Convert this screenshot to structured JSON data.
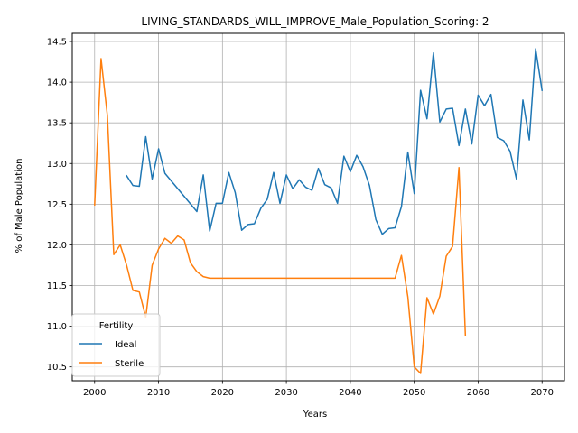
{
  "chart_data": {
    "type": "line",
    "title": "LIVING_STANDARDS_WILL_IMPROVE_Male_Population_Scoring: 2",
    "xlabel": "Years",
    "ylabel": "% of Male Population",
    "xlim": [
      1996.5,
      2073.5
    ],
    "ylim": [
      10.33,
      14.6
    ],
    "xticks": [
      2000,
      2010,
      2020,
      2030,
      2040,
      2050,
      2060,
      2070
    ],
    "yticks": [
      10.5,
      11.0,
      11.5,
      12.0,
      12.5,
      13.0,
      13.5,
      14.0,
      14.5
    ],
    "ytick_labels": [
      "10.5",
      "11.0",
      "11.5",
      "12.0",
      "12.5",
      "13.0",
      "13.5",
      "14.0",
      "14.5"
    ],
    "grid": true,
    "legend": {
      "title": "Fertility",
      "placement": "lower-left"
    },
    "series": [
      {
        "name": "Ideal",
        "color": "#1f77b4",
        "x": [
          2005,
          2006,
          2007,
          2008,
          2009,
          2010,
          2011,
          2016,
          2017,
          2018,
          2019,
          2020,
          2021,
          2022,
          2023,
          2024,
          2025,
          2026,
          2027,
          2028,
          2029,
          2030,
          2031,
          2032,
          2033,
          2034,
          2035,
          2036,
          2037,
          2038,
          2039,
          2040,
          2041,
          2042,
          2043,
          2044,
          2045,
          2046,
          2047,
          2048,
          2049,
          2050,
          2051,
          2052,
          2053,
          2054,
          2055,
          2056,
          2057,
          2058,
          2059,
          2060,
          2061,
          2062,
          2063,
          2064,
          2065,
          2066,
          2067,
          2068,
          2069,
          2070
        ],
        "values": [
          12.85,
          12.73,
          12.72,
          13.33,
          12.81,
          13.18,
          12.88,
          12.41,
          12.86,
          12.17,
          12.51,
          12.51,
          12.89,
          12.64,
          12.18,
          12.25,
          12.26,
          12.45,
          12.56,
          12.89,
          12.51,
          12.86,
          12.69,
          12.8,
          12.71,
          12.67,
          12.94,
          12.74,
          12.7,
          12.51,
          13.09,
          12.9,
          13.1,
          12.96,
          12.73,
          12.31,
          12.13,
          12.2,
          12.21,
          12.47,
          13.14,
          12.63,
          13.9,
          13.55,
          14.36,
          13.51,
          13.67,
          13.68,
          13.22,
          13.67,
          13.24,
          13.84,
          13.71,
          13.85,
          13.32,
          13.28,
          13.15,
          12.81,
          13.78,
          13.29,
          14.41,
          13.9
        ]
      },
      {
        "name": "Sterile",
        "color": "#ff7f0e",
        "x": [
          2000,
          2001,
          2002,
          2003,
          2004,
          2005,
          2006,
          2007,
          2008,
          2009,
          2010,
          2011,
          2012,
          2013,
          2014,
          2015,
          2016,
          2017,
          2018,
          2019,
          2020,
          2021,
          2022,
          2023,
          2024,
          2025,
          2026,
          2027,
          2028,
          2029,
          2030,
          2031,
          2032,
          2033,
          2034,
          2035,
          2036,
          2037,
          2038,
          2039,
          2040,
          2041,
          2042,
          2043,
          2044,
          2045,
          2046,
          2047,
          2048,
          2049,
          2050,
          2051,
          2052,
          2053,
          2054,
          2055,
          2056,
          2057,
          2058
        ],
        "values": [
          12.49,
          14.29,
          13.59,
          11.88,
          12.0,
          11.75,
          11.44,
          11.42,
          11.11,
          11.75,
          11.95,
          12.08,
          12.02,
          12.11,
          12.06,
          11.78,
          11.67,
          11.61,
          11.59,
          11.59,
          11.59,
          11.59,
          11.59,
          11.59,
          11.59,
          11.59,
          11.59,
          11.59,
          11.59,
          11.59,
          11.59,
          11.59,
          11.59,
          11.59,
          11.59,
          11.59,
          11.59,
          11.59,
          11.59,
          11.59,
          11.59,
          11.59,
          11.59,
          11.59,
          11.59,
          11.59,
          11.59,
          11.59,
          11.87,
          11.36,
          10.5,
          10.42,
          11.35,
          11.15,
          11.37,
          11.86,
          11.98,
          12.95,
          10.89
        ]
      }
    ]
  }
}
